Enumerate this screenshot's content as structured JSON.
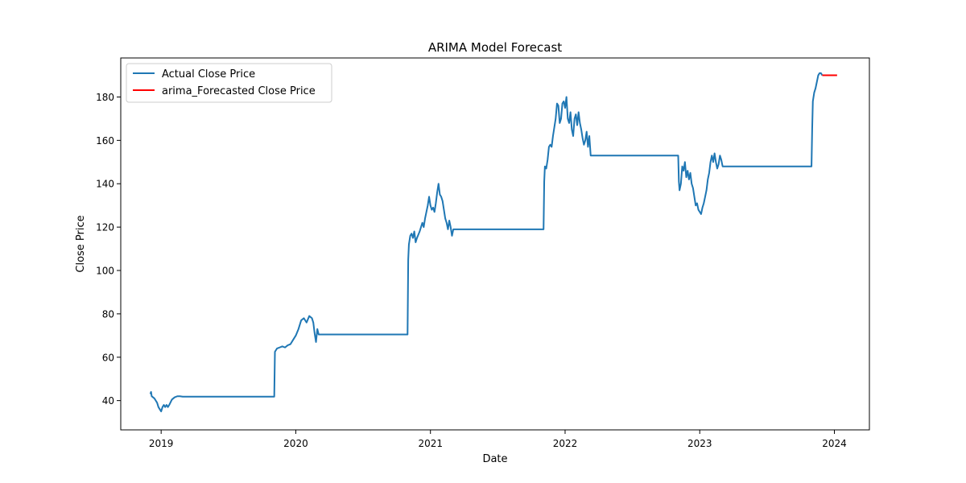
{
  "chart_data": {
    "type": "line",
    "title": "ARIMA Model Forecast",
    "xlabel": "Date",
    "ylabel": "Close Price",
    "x_ticks": [
      "2019",
      "2020",
      "2021",
      "2022",
      "2023",
      "2024"
    ],
    "x_tick_values": [
      2019.0,
      2020.0,
      2021.0,
      2022.0,
      2023.0,
      2024.0
    ],
    "y_ticks": [
      "40",
      "60",
      "80",
      "100",
      "120",
      "140",
      "160",
      "180"
    ],
    "y_tick_values": [
      40,
      60,
      80,
      100,
      120,
      140,
      160,
      180
    ],
    "xlim": [
      2018.7,
      2024.26
    ],
    "ylim": [
      26.5,
      198
    ],
    "grid": false,
    "legend": "top-left",
    "series": [
      {
        "name": "Actual Close Price",
        "color": "#1f77b4",
        "points": [
          [
            2018.92,
            43
          ],
          [
            2018.925,
            44
          ],
          [
            2018.93,
            42
          ],
          [
            2018.94,
            41.5
          ],
          [
            2018.95,
            41
          ],
          [
            2018.96,
            40
          ],
          [
            2018.97,
            39
          ],
          [
            2018.98,
            37
          ],
          [
            2018.99,
            36
          ],
          [
            2019.0,
            35
          ],
          [
            2019.01,
            37
          ],
          [
            2019.02,
            38
          ],
          [
            2019.03,
            37
          ],
          [
            2019.04,
            38
          ],
          [
            2019.05,
            37
          ],
          [
            2019.06,
            38
          ],
          [
            2019.08,
            40.5
          ],
          [
            2019.1,
            41.5
          ],
          [
            2019.12,
            42
          ],
          [
            2019.14,
            42
          ],
          [
            2019.16,
            41.8
          ],
          [
            2019.2,
            41.8
          ],
          [
            2019.84,
            41.8
          ],
          [
            2019.845,
            62.5
          ],
          [
            2019.86,
            64
          ],
          [
            2019.88,
            64.5
          ],
          [
            2019.9,
            65
          ],
          [
            2019.92,
            64.5
          ],
          [
            2019.94,
            65.5
          ],
          [
            2019.96,
            66
          ],
          [
            2019.98,
            68
          ],
          [
            2020.0,
            70
          ],
          [
            2020.02,
            73
          ],
          [
            2020.04,
            77
          ],
          [
            2020.06,
            78
          ],
          [
            2020.08,
            76
          ],
          [
            2020.1,
            79
          ],
          [
            2020.12,
            78
          ],
          [
            2020.13,
            76
          ],
          [
            2020.14,
            71
          ],
          [
            2020.15,
            67
          ],
          [
            2020.16,
            73
          ],
          [
            2020.17,
            70.5
          ],
          [
            2020.18,
            70.5
          ],
          [
            2020.83,
            70.5
          ],
          [
            2020.835,
            105
          ],
          [
            2020.84,
            112
          ],
          [
            2020.85,
            116
          ],
          [
            2020.86,
            117
          ],
          [
            2020.87,
            115
          ],
          [
            2020.88,
            118
          ],
          [
            2020.89,
            113
          ],
          [
            2020.9,
            115
          ],
          [
            2020.92,
            118
          ],
          [
            2020.94,
            122
          ],
          [
            2020.95,
            120
          ],
          [
            2020.96,
            124
          ],
          [
            2020.97,
            127
          ],
          [
            2020.98,
            130
          ],
          [
            2020.99,
            134
          ],
          [
            2021.0,
            130
          ],
          [
            2021.01,
            128
          ],
          [
            2021.02,
            129
          ],
          [
            2021.03,
            127
          ],
          [
            2021.04,
            131
          ],
          [
            2021.05,
            136
          ],
          [
            2021.06,
            140
          ],
          [
            2021.07,
            135
          ],
          [
            2021.08,
            134
          ],
          [
            2021.09,
            132
          ],
          [
            2021.1,
            128
          ],
          [
            2021.11,
            124
          ],
          [
            2021.12,
            122
          ],
          [
            2021.13,
            119
          ],
          [
            2021.14,
            123
          ],
          [
            2021.15,
            120
          ],
          [
            2021.16,
            116
          ],
          [
            2021.17,
            119
          ],
          [
            2021.18,
            119
          ],
          [
            2021.84,
            119
          ],
          [
            2021.845,
            141
          ],
          [
            2021.85,
            148
          ],
          [
            2021.86,
            147
          ],
          [
            2021.87,
            151
          ],
          [
            2021.88,
            157
          ],
          [
            2021.89,
            158
          ],
          [
            2021.9,
            157
          ],
          [
            2021.91,
            162
          ],
          [
            2021.92,
            166
          ],
          [
            2021.93,
            170
          ],
          [
            2021.94,
            177
          ],
          [
            2021.95,
            176
          ],
          [
            2021.96,
            168
          ],
          [
            2021.97,
            170
          ],
          [
            2021.98,
            177
          ],
          [
            2021.99,
            178
          ],
          [
            2022.0,
            175
          ],
          [
            2022.01,
            180
          ],
          [
            2022.02,
            170
          ],
          [
            2022.03,
            168
          ],
          [
            2022.04,
            173
          ],
          [
            2022.05,
            165
          ],
          [
            2022.06,
            162
          ],
          [
            2022.07,
            170
          ],
          [
            2022.08,
            172
          ],
          [
            2022.09,
            167
          ],
          [
            2022.1,
            173
          ],
          [
            2022.11,
            168
          ],
          [
            2022.12,
            165
          ],
          [
            2022.13,
            161
          ],
          [
            2022.14,
            158
          ],
          [
            2022.15,
            160
          ],
          [
            2022.16,
            164
          ],
          [
            2022.17,
            157
          ],
          [
            2022.18,
            162
          ],
          [
            2022.19,
            153
          ],
          [
            2022.2,
            153
          ],
          [
            2022.84,
            153
          ],
          [
            2022.845,
            141
          ],
          [
            2022.85,
            137
          ],
          [
            2022.86,
            140
          ],
          [
            2022.87,
            148
          ],
          [
            2022.88,
            146
          ],
          [
            2022.89,
            150
          ],
          [
            2022.9,
            143
          ],
          [
            2022.91,
            146
          ],
          [
            2022.92,
            142
          ],
          [
            2022.93,
            145
          ],
          [
            2022.94,
            140
          ],
          [
            2022.95,
            138
          ],
          [
            2022.96,
            134
          ],
          [
            2022.97,
            130
          ],
          [
            2022.98,
            131
          ],
          [
            2022.99,
            128
          ],
          [
            2023.0,
            127
          ],
          [
            2023.01,
            126
          ],
          [
            2023.02,
            129
          ],
          [
            2023.03,
            131
          ],
          [
            2023.04,
            134
          ],
          [
            2023.05,
            137
          ],
          [
            2023.06,
            142
          ],
          [
            2023.07,
            145
          ],
          [
            2023.08,
            150
          ],
          [
            2023.09,
            153
          ],
          [
            2023.1,
            150
          ],
          [
            2023.11,
            154
          ],
          [
            2023.12,
            150
          ],
          [
            2023.13,
            147
          ],
          [
            2023.14,
            149
          ],
          [
            2023.15,
            153
          ],
          [
            2023.16,
            151
          ],
          [
            2023.17,
            148
          ],
          [
            2023.18,
            148
          ],
          [
            2023.83,
            148
          ],
          [
            2023.835,
            165
          ],
          [
            2023.84,
            178
          ],
          [
            2023.85,
            182
          ],
          [
            2023.86,
            184
          ],
          [
            2023.87,
            187
          ],
          [
            2023.88,
            190
          ],
          [
            2023.89,
            191
          ],
          [
            2023.9,
            191
          ],
          [
            2023.91,
            190
          ]
        ]
      },
      {
        "name": "arima_Forecasted Close Price",
        "color": "#ff0000",
        "points": [
          [
            2023.91,
            190
          ],
          [
            2023.94,
            190
          ],
          [
            2023.98,
            190
          ],
          [
            2024.02,
            190
          ]
        ]
      }
    ]
  }
}
